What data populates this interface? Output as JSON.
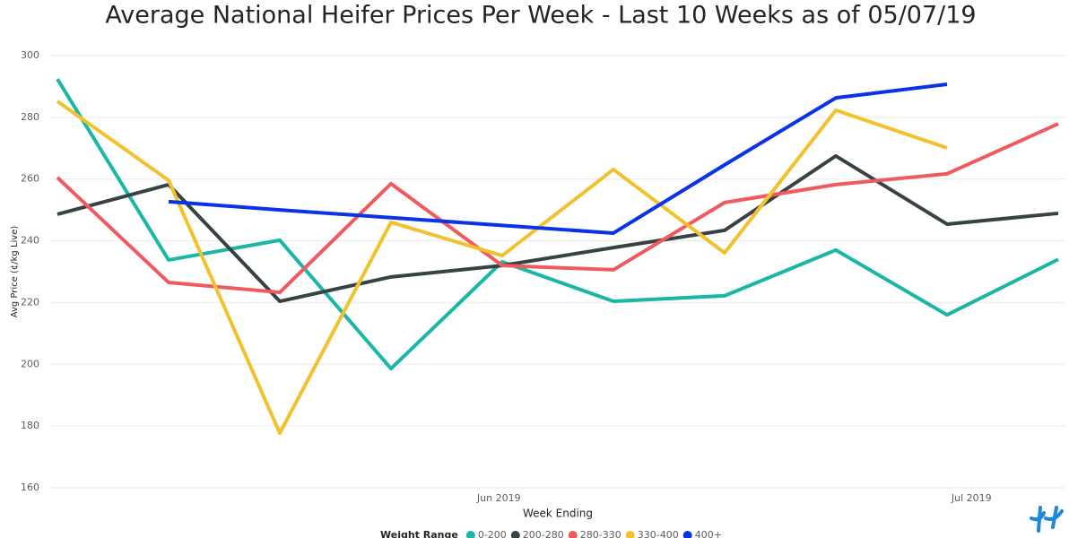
{
  "chart_data": {
    "type": "line",
    "title": "Average National Heifer Prices Per Week - Last 10 Weeks as of 05/07/19",
    "x_label": "Week Ending",
    "y_label": "Avg Price (¢/kg Live)",
    "legend_title": "Weight Range",
    "categories": [
      null,
      null,
      null,
      null,
      null,
      null,
      null,
      null,
      null,
      null
    ],
    "xticks": [
      {
        "value": 3.97,
        "label": "Jun 2019"
      },
      {
        "value": 8.22,
        "label": "Jul 2019"
      }
    ],
    "ylim": [
      160,
      300
    ],
    "yticks": [
      160,
      180,
      200,
      220,
      240,
      260,
      280,
      300
    ],
    "grid": true,
    "legend": "bottom",
    "series": [
      {
        "name": "0-200",
        "color": "#1ab6a6",
        "values": [
          292.4,
          233.8,
          240.2,
          198.6,
          233.2,
          220.4,
          222.2,
          237,
          216,
          234
        ]
      },
      {
        "name": "200-280",
        "color": "#374245",
        "values": [
          248.6,
          258.2,
          220.4,
          228.3,
          232,
          237.8,
          243.4,
          267.5,
          245.4,
          248.9
        ]
      },
      {
        "name": "280-330",
        "color": "#f05a5f",
        "values": [
          260.5,
          226.5,
          223.3,
          258.5,
          232,
          230.6,
          252.4,
          258.2,
          261.7,
          277.9
        ]
      },
      {
        "name": "330-400",
        "color": "#f2c12e",
        "values": [
          285.2,
          259.6,
          177.7,
          246,
          235.2,
          263.1,
          236.1,
          282.3,
          270.1,
          null
        ]
      },
      {
        "name": "400+",
        "color": "#0a32e6",
        "values": [
          null,
          252.7,
          250,
          247.5,
          245,
          242.5,
          264.6,
          286.3,
          290.7,
          null
        ]
      }
    ]
  }
}
